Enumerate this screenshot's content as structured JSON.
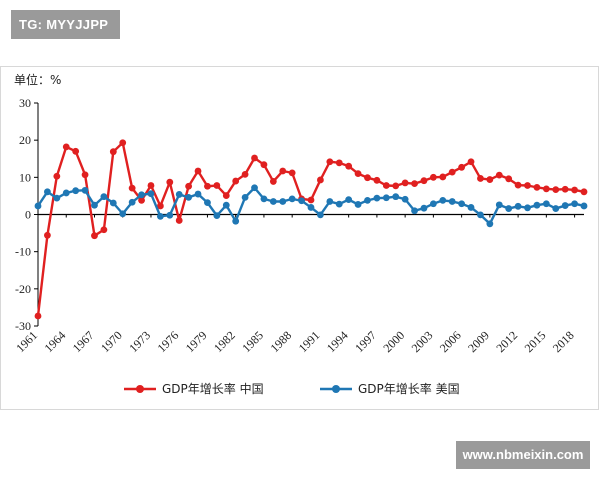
{
  "watermarks": {
    "top": "TG: MYYJJPP",
    "bottom": "www.nbmeixin.com"
  },
  "colors": {
    "china": "#e02020",
    "usa": "#1f77b4",
    "axis": "#000000",
    "grid": "#d9d9d9"
  },
  "chart_data": {
    "type": "line",
    "unit_label": "单位：%",
    "ylim": [
      -30,
      30
    ],
    "yticks": [
      -30,
      -20,
      -10,
      0,
      10,
      20,
      30
    ],
    "xlim": [
      1961,
      2019
    ],
    "xticks": [
      1961,
      1964,
      1967,
      1970,
      1973,
      1976,
      1979,
      1982,
      1985,
      1988,
      1991,
      1994,
      1997,
      2000,
      2003,
      2006,
      2009,
      2012,
      2015,
      2018
    ],
    "grid": false,
    "legend_position": "bottom",
    "series": [
      {
        "name": "GDP年增长率 中国",
        "color": "#e02020",
        "points": [
          [
            1961,
            -27.3
          ],
          [
            1962,
            -5.6
          ],
          [
            1963,
            10.3
          ],
          [
            1964,
            18.2
          ],
          [
            1965,
            17.0
          ],
          [
            1966,
            10.7
          ],
          [
            1967,
            -5.7
          ],
          [
            1968,
            -4.1
          ],
          [
            1969,
            16.9
          ],
          [
            1970,
            19.3
          ],
          [
            1971,
            7.1
          ],
          [
            1972,
            3.8
          ],
          [
            1973,
            7.8
          ],
          [
            1974,
            2.3
          ],
          [
            1975,
            8.7
          ],
          [
            1976,
            -1.6
          ],
          [
            1977,
            7.6
          ],
          [
            1978,
            11.7
          ],
          [
            1979,
            7.6
          ],
          [
            1980,
            7.8
          ],
          [
            1981,
            5.1
          ],
          [
            1982,
            9.0
          ],
          [
            1983,
            10.8
          ],
          [
            1984,
            15.2
          ],
          [
            1985,
            13.4
          ],
          [
            1986,
            8.9
          ],
          [
            1987,
            11.7
          ],
          [
            1988,
            11.2
          ],
          [
            1989,
            4.2
          ],
          [
            1990,
            3.9
          ],
          [
            1991,
            9.3
          ],
          [
            1992,
            14.2
          ],
          [
            1993,
            13.9
          ],
          [
            1994,
            13.0
          ],
          [
            1995,
            11.0
          ],
          [
            1996,
            9.9
          ],
          [
            1997,
            9.2
          ],
          [
            1998,
            7.8
          ],
          [
            1999,
            7.7
          ],
          [
            2000,
            8.5
          ],
          [
            2001,
            8.3
          ],
          [
            2002,
            9.1
          ],
          [
            2003,
            10.0
          ],
          [
            2004,
            10.1
          ],
          [
            2005,
            11.4
          ],
          [
            2006,
            12.7
          ],
          [
            2007,
            14.2
          ],
          [
            2008,
            9.7
          ],
          [
            2009,
            9.4
          ],
          [
            2010,
            10.6
          ],
          [
            2011,
            9.6
          ],
          [
            2012,
            7.9
          ],
          [
            2013,
            7.8
          ],
          [
            2014,
            7.3
          ],
          [
            2015,
            6.9
          ],
          [
            2016,
            6.7
          ],
          [
            2017,
            6.8
          ],
          [
            2018,
            6.6
          ],
          [
            2019,
            6.1
          ]
        ]
      },
      {
        "name": "GDP年增长率 美国",
        "color": "#1f77b4",
        "points": [
          [
            1961,
            2.3
          ],
          [
            1962,
            6.1
          ],
          [
            1963,
            4.4
          ],
          [
            1964,
            5.8
          ],
          [
            1965,
            6.4
          ],
          [
            1966,
            6.5
          ],
          [
            1967,
            2.5
          ],
          [
            1968,
            4.8
          ],
          [
            1969,
            3.1
          ],
          [
            1970,
            0.2
          ],
          [
            1971,
            3.3
          ],
          [
            1972,
            5.3
          ],
          [
            1973,
            5.6
          ],
          [
            1974,
            -0.5
          ],
          [
            1975,
            -0.2
          ],
          [
            1976,
            5.4
          ],
          [
            1977,
            4.6
          ],
          [
            1978,
            5.5
          ],
          [
            1979,
            3.2
          ],
          [
            1980,
            -0.3
          ],
          [
            1981,
            2.5
          ],
          [
            1982,
            -1.8
          ],
          [
            1983,
            4.6
          ],
          [
            1984,
            7.2
          ],
          [
            1985,
            4.2
          ],
          [
            1986,
            3.5
          ],
          [
            1987,
            3.5
          ],
          [
            1988,
            4.2
          ],
          [
            1989,
            3.7
          ],
          [
            1990,
            1.9
          ],
          [
            1991,
            -0.1
          ],
          [
            1992,
            3.5
          ],
          [
            1993,
            2.8
          ],
          [
            1994,
            4.0
          ],
          [
            1995,
            2.7
          ],
          [
            1996,
            3.8
          ],
          [
            1997,
            4.4
          ],
          [
            1998,
            4.5
          ],
          [
            1999,
            4.8
          ],
          [
            2000,
            4.1
          ],
          [
            2001,
            1.0
          ],
          [
            2002,
            1.7
          ],
          [
            2003,
            2.9
          ],
          [
            2004,
            3.8
          ],
          [
            2005,
            3.5
          ],
          [
            2006,
            2.9
          ],
          [
            2007,
            1.9
          ],
          [
            2008,
            -0.1
          ],
          [
            2009,
            -2.5
          ],
          [
            2010,
            2.6
          ],
          [
            2011,
            1.6
          ],
          [
            2012,
            2.2
          ],
          [
            2013,
            1.8
          ],
          [
            2014,
            2.5
          ],
          [
            2015,
            2.9
          ],
          [
            2016,
            1.6
          ],
          [
            2017,
            2.4
          ],
          [
            2018,
            2.9
          ],
          [
            2019,
            2.3
          ]
        ]
      }
    ]
  }
}
